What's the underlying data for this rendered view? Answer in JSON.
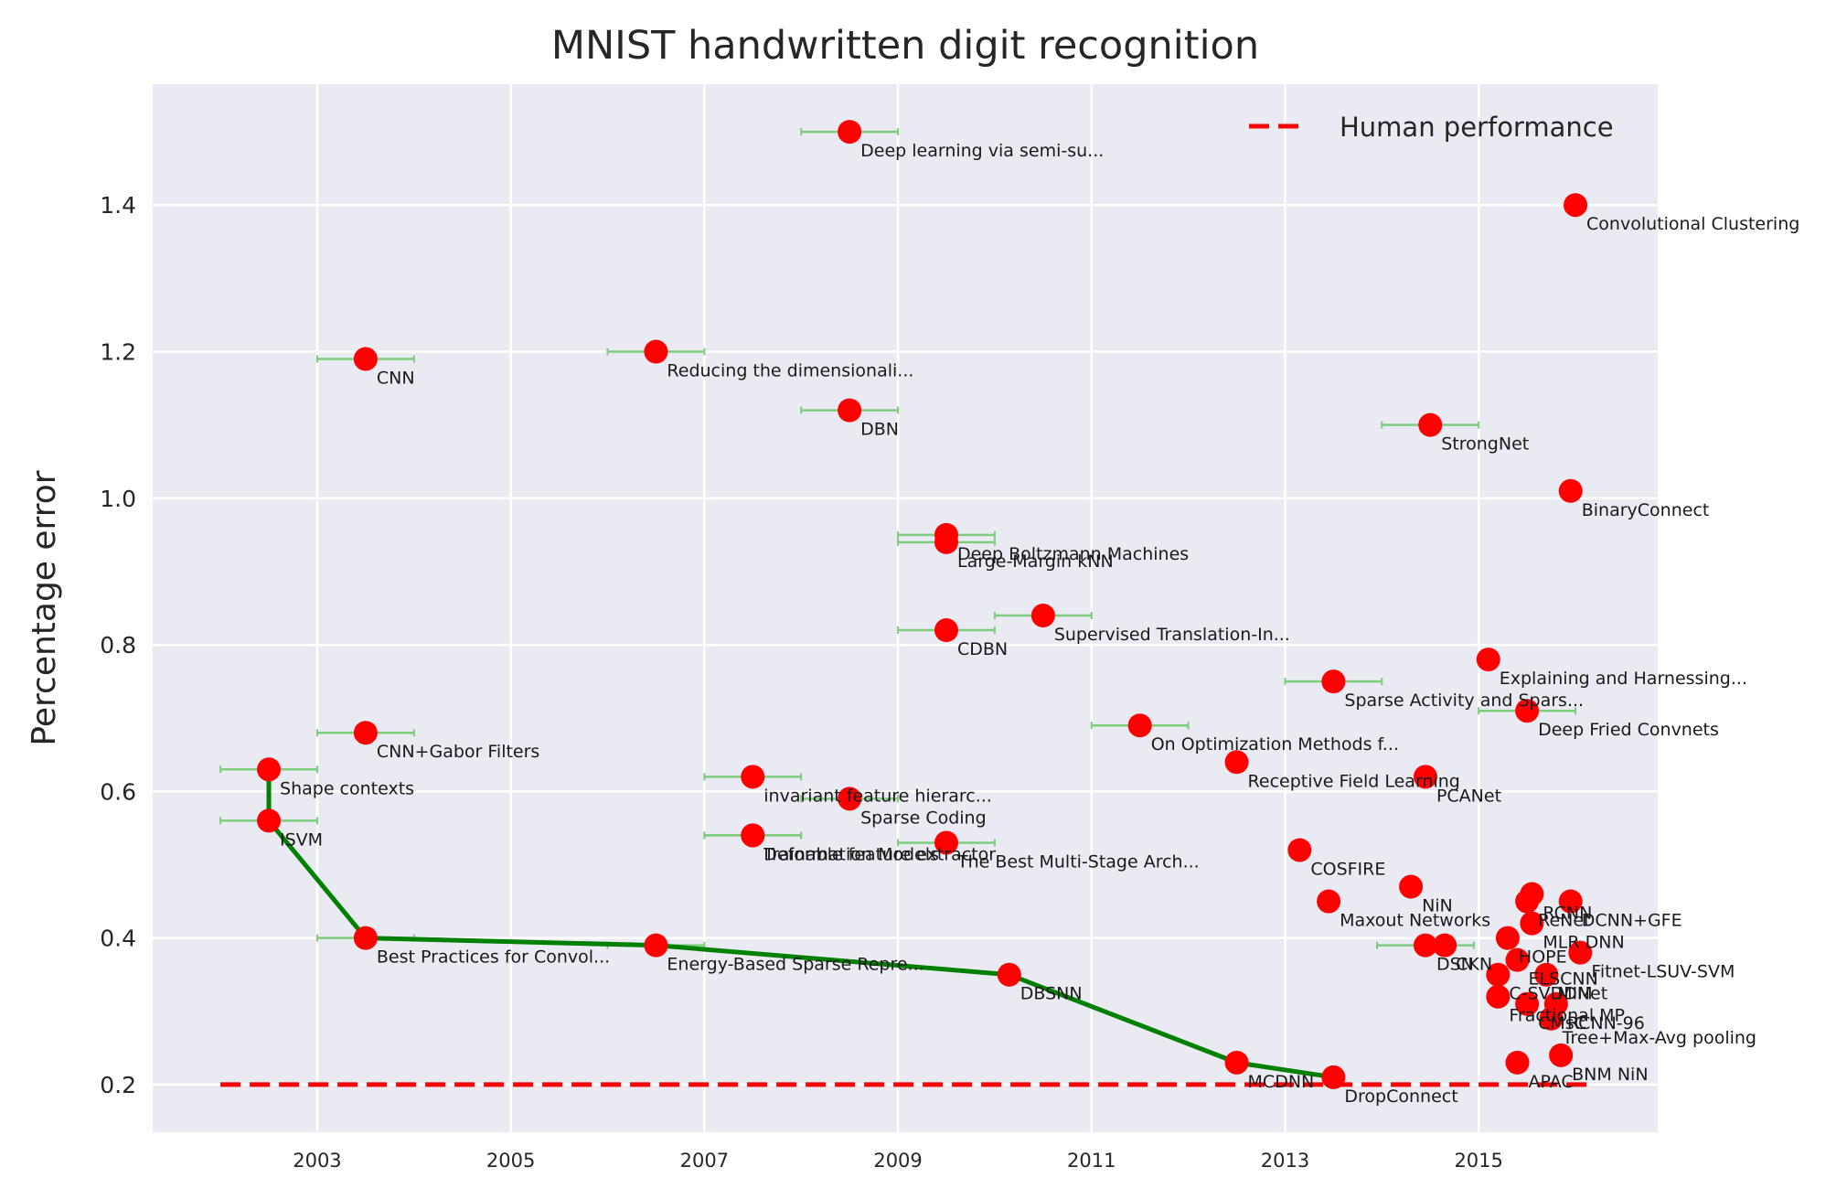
{
  "chart_data": {
    "type": "scatter",
    "title": "MNIST handwritten digit recognition",
    "xlabel": "",
    "ylabel": "Percentage error",
    "xlim": [
      2001.3,
      2016.85
    ],
    "ylim": [
      0.135,
      1.565
    ],
    "x_ticks": [
      2003,
      2005,
      2007,
      2009,
      2011,
      2013,
      2015
    ],
    "x_tick_labels": [
      "2003",
      "2005",
      "2007",
      "2009",
      "2011",
      "2013",
      "2015"
    ],
    "y_ticks": [
      0.2,
      0.4,
      0.6,
      0.8,
      1.0,
      1.2,
      1.4
    ],
    "y_tick_labels": [
      "0.2",
      "0.4",
      "0.6",
      "0.8",
      "1.0",
      "1.2",
      "1.4"
    ],
    "grid": true,
    "legend": {
      "placement": "top-right",
      "entries": [
        "Human performance"
      ]
    },
    "human_performance": 0.2,
    "human_x_range": [
      2002.0,
      2016.15
    ],
    "colors": {
      "background": "#eaeaf2",
      "points": "#ff0000",
      "errorbars": "#7fcc7f",
      "frontier": "#008000",
      "human": "#ff0000",
      "grid": "#ffffff"
    },
    "points": [
      {
        "label": "Deep learning via semi-su...",
        "x": 2008.5,
        "y": 1.5,
        "xerr": 0.5
      },
      {
        "label": "Convolutional Clustering",
        "x": 2016.0,
        "y": 1.4,
        "xerr": 0
      },
      {
        "label": "CNN",
        "x": 2003.5,
        "y": 1.19,
        "xerr": 0.5
      },
      {
        "label": "Reducing the dimensionali...",
        "x": 2006.5,
        "y": 1.2,
        "xerr": 0.5
      },
      {
        "label": "DBN",
        "x": 2008.5,
        "y": 1.12,
        "xerr": 0.5
      },
      {
        "label": "StrongNet",
        "x": 2014.5,
        "y": 1.1,
        "xerr": 0.5
      },
      {
        "label": "BinaryConnect",
        "x": 2015.95,
        "y": 1.01,
        "xerr": 0
      },
      {
        "label": "Deep Boltzmann Machines",
        "x": 2009.5,
        "y": 0.95,
        "xerr": 0.5
      },
      {
        "label": "Large-Margin kNN",
        "x": 2009.5,
        "y": 0.94,
        "xerr": 0.5
      },
      {
        "label": "CDBN",
        "x": 2009.5,
        "y": 0.82,
        "xerr": 0.5
      },
      {
        "label": "Supervised Translation-In...",
        "x": 2010.5,
        "y": 0.84,
        "xerr": 0.5
      },
      {
        "label": "Explaining and Harnessing...",
        "x": 2015.1,
        "y": 0.78,
        "xerr": 0
      },
      {
        "label": "Sparse Activity and Spars...",
        "x": 2013.5,
        "y": 0.75,
        "xerr": 0.5
      },
      {
        "label": "Deep Fried Convnets",
        "x": 2015.5,
        "y": 0.71,
        "xerr": 0.5
      },
      {
        "label": "CNN+Gabor Filters",
        "x": 2003.5,
        "y": 0.68,
        "xerr": 0.5
      },
      {
        "label": "On Optimization Methods f...",
        "x": 2011.5,
        "y": 0.69,
        "xerr": 0.5
      },
      {
        "label": "Shape contexts",
        "x": 2002.5,
        "y": 0.63,
        "xerr": 0.5
      },
      {
        "label": "Receptive Field Learning",
        "x": 2012.5,
        "y": 0.64,
        "xerr": 0
      },
      {
        "label": "invariant feature hierarc...",
        "x": 2007.5,
        "y": 0.62,
        "xerr": 0.5
      },
      {
        "label": "PCANet",
        "x": 2014.45,
        "y": 0.62,
        "xerr": 0.05
      },
      {
        "label": "Sparse Coding",
        "x": 2008.5,
        "y": 0.59,
        "xerr": 0.5
      },
      {
        "label": "ISVM",
        "x": 2002.5,
        "y": 0.56,
        "xerr": 0.5
      },
      {
        "label": "Deformation Models",
        "x": 2007.5,
        "y": 0.54,
        "xerr": 0.5
      },
      {
        "label": "Trainable feature extractor",
        "x": 2007.5,
        "y": 0.54,
        "xerr": 0.5
      },
      {
        "label": "The Best Multi-Stage Arch...",
        "x": 2009.5,
        "y": 0.53,
        "xerr": 0.5
      },
      {
        "label": "COSFIRE",
        "x": 2013.15,
        "y": 0.52,
        "xerr": 0
      },
      {
        "label": "NiN",
        "x": 2014.3,
        "y": 0.47,
        "xerr": 0
      },
      {
        "label": "Maxout Networks",
        "x": 2013.45,
        "y": 0.45,
        "xerr": 0
      },
      {
        "label": "DCNN+GFE",
        "x": 2015.95,
        "y": 0.45,
        "xerr": 0
      },
      {
        "label": "ReNet",
        "x": 2015.5,
        "y": 0.45,
        "xerr": 0.05
      },
      {
        "label": "RCNN",
        "x": 2015.55,
        "y": 0.46,
        "xerr": 0
      },
      {
        "label": "MLR DNN",
        "x": 2015.55,
        "y": 0.42,
        "xerr": 0.1
      },
      {
        "label": "Best Practices for Convol...",
        "x": 2003.5,
        "y": 0.4,
        "xerr": 0.5
      },
      {
        "label": "Energy-Based Sparse Repre...",
        "x": 2006.5,
        "y": 0.39,
        "xerr": 0.5
      },
      {
        "label": "DSN",
        "x": 2014.45,
        "y": 0.39,
        "xerr": 0.5
      },
      {
        "label": "CKN",
        "x": 2014.65,
        "y": 0.39,
        "xerr": 0
      },
      {
        "label": "HOPE",
        "x": 2015.3,
        "y": 0.4,
        "xerr": 0
      },
      {
        "label": "Fitnet-LSUV-SVM",
        "x": 2016.05,
        "y": 0.38,
        "xerr": 0
      },
      {
        "label": "ELSCNN",
        "x": 2015.4,
        "y": 0.37,
        "xerr": 0
      },
      {
        "label": "DBSNN",
        "x": 2010.15,
        "y": 0.35,
        "xerr": 0
      },
      {
        "label": "MIM",
        "x": 2015.7,
        "y": 0.35,
        "xerr": 0
      },
      {
        "label": "C-SVDDNet",
        "x": 2015.2,
        "y": 0.35,
        "xerr": 0
      },
      {
        "label": "Fractional MP",
        "x": 2015.2,
        "y": 0.32,
        "xerr": 0.05
      },
      {
        "label": "CMsC",
        "x": 2015.5,
        "y": 0.31,
        "xerr": 0
      },
      {
        "label": "Tree+Max-Avg pooling",
        "x": 2015.75,
        "y": 0.29,
        "xerr": 0
      },
      {
        "label": "RCNN-96",
        "x": 2015.8,
        "y": 0.31,
        "xerr": 0
      },
      {
        "label": "BNM NiN",
        "x": 2015.85,
        "y": 0.24,
        "xerr": 0
      },
      {
        "label": "APAC",
        "x": 2015.4,
        "y": 0.23,
        "xerr": 0
      },
      {
        "label": "MCDNN",
        "x": 2012.5,
        "y": 0.23,
        "xerr": 0
      },
      {
        "label": "DropConnect",
        "x": 2013.5,
        "y": 0.21,
        "xerr": 0
      }
    ],
    "frontier": [
      {
        "x": 2002.5,
        "y": 0.63
      },
      {
        "x": 2002.5,
        "y": 0.56
      },
      {
        "x": 2003.5,
        "y": 0.4
      },
      {
        "x": 2006.5,
        "y": 0.39
      },
      {
        "x": 2010.15,
        "y": 0.35
      },
      {
        "x": 2012.5,
        "y": 0.23
      },
      {
        "x": 2013.5,
        "y": 0.21
      }
    ]
  }
}
